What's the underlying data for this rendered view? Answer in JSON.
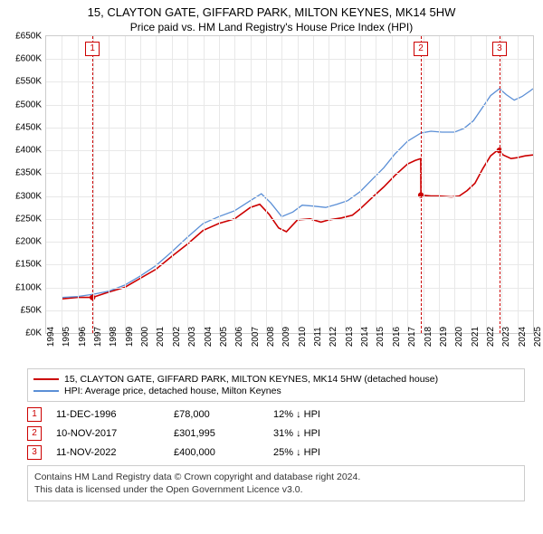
{
  "title": {
    "line1": "15, CLAYTON GATE, GIFFARD PARK, MILTON KEYNES, MK14 5HW",
    "line2": "Price paid vs. HM Land Registry's House Price Index (HPI)"
  },
  "chart": {
    "type": "line",
    "background_color": "#ffffff",
    "grid_color": "#e8e8e8",
    "border_color": "#cccccc",
    "x": {
      "min": 1994,
      "max": 2025,
      "step": 1
    },
    "y": {
      "min": 0,
      "max": 650000,
      "step": 50000,
      "prefix": "£",
      "suffix": "K",
      "divisor": 1000
    },
    "series": [
      {
        "id": "price_paid",
        "color": "#cc0000",
        "width": 1.6,
        "points": [
          [
            1995.0,
            75000
          ],
          [
            1996.0,
            78000
          ],
          [
            1996.95,
            78000
          ],
          [
            1997.3,
            82000
          ],
          [
            1998.0,
            90000
          ],
          [
            1999.0,
            100000
          ],
          [
            2000.0,
            120000
          ],
          [
            2001.0,
            140000
          ],
          [
            2002.0,
            168000
          ],
          [
            2003.0,
            195000
          ],
          [
            2004.0,
            225000
          ],
          [
            2005.0,
            240000
          ],
          [
            2006.0,
            250000
          ],
          [
            2007.0,
            275000
          ],
          [
            2007.6,
            282000
          ],
          [
            2008.2,
            260000
          ],
          [
            2008.8,
            230000
          ],
          [
            2009.3,
            222000
          ],
          [
            2010.0,
            248000
          ],
          [
            2010.8,
            250000
          ],
          [
            2011.5,
            243000
          ],
          [
            2012.0,
            248000
          ],
          [
            2012.8,
            252000
          ],
          [
            2013.5,
            258000
          ],
          [
            2014.0,
            272000
          ],
          [
            2014.8,
            298000
          ],
          [
            2015.5,
            320000
          ],
          [
            2016.2,
            345000
          ],
          [
            2017.0,
            370000
          ],
          [
            2017.5,
            378000
          ],
          [
            2017.85,
            382000
          ],
          [
            2017.86,
            301995
          ],
          [
            2018.5,
            300000
          ],
          [
            2019.0,
            300000
          ],
          [
            2019.8,
            298000
          ],
          [
            2020.3,
            300000
          ],
          [
            2020.8,
            312000
          ],
          [
            2021.3,
            328000
          ],
          [
            2021.8,
            360000
          ],
          [
            2022.3,
            388000
          ],
          [
            2022.65,
            398000
          ],
          [
            2022.86,
            400000
          ],
          [
            2023.1,
            390000
          ],
          [
            2023.6,
            382000
          ],
          [
            2024.0,
            384000
          ],
          [
            2024.5,
            388000
          ],
          [
            2025.0,
            390000
          ]
        ],
        "dots": [
          {
            "x": 1996.95,
            "y": 78000
          },
          {
            "x": 2017.86,
            "y": 301995
          },
          {
            "x": 2022.86,
            "y": 400000
          }
        ]
      },
      {
        "id": "hpi",
        "color": "#5b8fd6",
        "width": 1.3,
        "points": [
          [
            1995.0,
            78000
          ],
          [
            1996.0,
            80000
          ],
          [
            1997.0,
            85000
          ],
          [
            1998.0,
            92000
          ],
          [
            1999.0,
            105000
          ],
          [
            2000.0,
            125000
          ],
          [
            2001.0,
            148000
          ],
          [
            2002.0,
            178000
          ],
          [
            2003.0,
            210000
          ],
          [
            2004.0,
            240000
          ],
          [
            2005.0,
            255000
          ],
          [
            2006.0,
            268000
          ],
          [
            2007.0,
            290000
          ],
          [
            2007.7,
            305000
          ],
          [
            2008.3,
            285000
          ],
          [
            2009.0,
            255000
          ],
          [
            2009.7,
            265000
          ],
          [
            2010.3,
            280000
          ],
          [
            2011.0,
            278000
          ],
          [
            2011.8,
            275000
          ],
          [
            2012.5,
            282000
          ],
          [
            2013.2,
            290000
          ],
          [
            2014.0,
            310000
          ],
          [
            2014.8,
            338000
          ],
          [
            2015.5,
            362000
          ],
          [
            2016.2,
            392000
          ],
          [
            2017.0,
            420000
          ],
          [
            2017.86,
            438000
          ],
          [
            2018.5,
            442000
          ],
          [
            2019.2,
            440000
          ],
          [
            2020.0,
            440000
          ],
          [
            2020.6,
            448000
          ],
          [
            2021.2,
            465000
          ],
          [
            2021.8,
            495000
          ],
          [
            2022.3,
            520000
          ],
          [
            2022.86,
            535000
          ],
          [
            2023.3,
            522000
          ],
          [
            2023.8,
            510000
          ],
          [
            2024.3,
            518000
          ],
          [
            2024.8,
            530000
          ],
          [
            2025.0,
            535000
          ]
        ]
      }
    ],
    "event_markers": [
      {
        "n": "1",
        "x": 1996.95,
        "color": "#cc0000"
      },
      {
        "n": "2",
        "x": 2017.86,
        "color": "#cc0000"
      },
      {
        "n": "3",
        "x": 2022.86,
        "color": "#cc0000"
      }
    ]
  },
  "legend": [
    {
      "color": "#cc0000",
      "label": "15, CLAYTON GATE, GIFFARD PARK, MILTON KEYNES, MK14 5HW (detached house)"
    },
    {
      "color": "#5b8fd6",
      "label": "HPI: Average price, detached house, Milton Keynes"
    }
  ],
  "events": [
    {
      "n": "1",
      "color": "#cc0000",
      "date": "11-DEC-1996",
      "price": "£78,000",
      "delta": "12% ↓ HPI"
    },
    {
      "n": "2",
      "color": "#cc0000",
      "date": "10-NOV-2017",
      "price": "£301,995",
      "delta": "31% ↓ HPI"
    },
    {
      "n": "3",
      "color": "#cc0000",
      "date": "11-NOV-2022",
      "price": "£400,000",
      "delta": "25% ↓ HPI"
    }
  ],
  "footer": {
    "line1": "Contains HM Land Registry data © Crown copyright and database right 2024.",
    "line2": "This data is licensed under the Open Government Licence v3.0."
  }
}
